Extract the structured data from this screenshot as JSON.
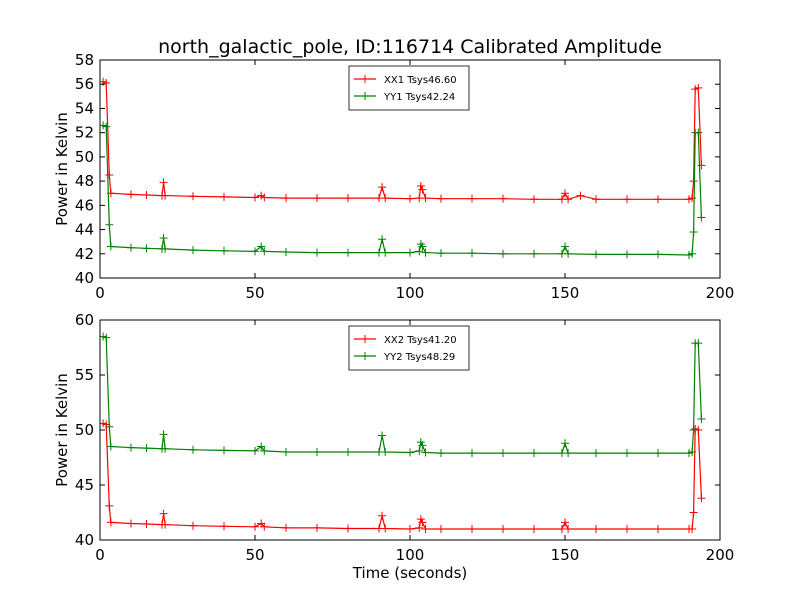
{
  "figure_title": "north_galactic_pole, ID:116714 Calibrated Amplitude",
  "chart_data": [
    {
      "type": "line",
      "title": "north_galactic_pole, ID:116714 Calibrated Amplitude",
      "xlabel": "",
      "ylabel": "Power in Kelvin",
      "xlim": [
        0,
        200
      ],
      "ylim": [
        40,
        58
      ],
      "xticks": [
        0,
        50,
        100,
        150,
        200
      ],
      "yticks": [
        40,
        42,
        44,
        46,
        48,
        50,
        52,
        54,
        56,
        58
      ],
      "grid": false,
      "legend_position": "top-center",
      "series": [
        {
          "name": "XX1 Tsys46.60",
          "color": "#ff0000",
          "marker": "+",
          "points": [
            [
              1,
              56.2
            ],
            [
              2,
              56.1
            ],
            [
              3,
              48.5
            ],
            [
              3.5,
              47.0
            ],
            [
              10,
              46.9
            ],
            [
              15,
              46.85
            ],
            [
              20,
              46.8
            ],
            [
              20.5,
              47.9
            ],
            [
              21,
              46.8
            ],
            [
              30,
              46.75
            ],
            [
              40,
              46.7
            ],
            [
              50,
              46.65
            ],
            [
              52,
              46.8
            ],
            [
              53,
              46.65
            ],
            [
              60,
              46.6
            ],
            [
              70,
              46.6
            ],
            [
              80,
              46.6
            ],
            [
              90,
              46.6
            ],
            [
              91,
              47.5
            ],
            [
              92,
              46.6
            ],
            [
              100,
              46.55
            ],
            [
              103,
              46.6
            ],
            [
              103.5,
              47.6
            ],
            [
              104,
              47.3
            ],
            [
              105,
              46.6
            ],
            [
              110,
              46.55
            ],
            [
              120,
              46.55
            ],
            [
              130,
              46.55
            ],
            [
              140,
              46.5
            ],
            [
              149,
              46.5
            ],
            [
              150,
              47.0
            ],
            [
              151,
              46.5
            ],
            [
              155,
              46.8
            ],
            [
              160,
              46.5
            ],
            [
              170,
              46.5
            ],
            [
              180,
              46.5
            ],
            [
              190,
              46.5
            ],
            [
              191,
              46.6
            ],
            [
              191.5,
              48.0
            ],
            [
              192,
              55.6
            ],
            [
              193,
              55.7
            ],
            [
              194,
              49.3
            ]
          ]
        },
        {
          "name": "YY1 Tsys42.24",
          "color": "#008000",
          "marker": "+",
          "points": [
            [
              1,
              52.6
            ],
            [
              2,
              52.5
            ],
            [
              3,
              44.4
            ],
            [
              3.5,
              42.6
            ],
            [
              10,
              42.5
            ],
            [
              15,
              42.45
            ],
            [
              20,
              42.4
            ],
            [
              20.5,
              43.3
            ],
            [
              21,
              42.4
            ],
            [
              30,
              42.3
            ],
            [
              40,
              42.25
            ],
            [
              50,
              42.2
            ],
            [
              52,
              42.6
            ],
            [
              53,
              42.2
            ],
            [
              60,
              42.15
            ],
            [
              70,
              42.1
            ],
            [
              80,
              42.1
            ],
            [
              90,
              42.1
            ],
            [
              91,
              43.2
            ],
            [
              92,
              42.1
            ],
            [
              100,
              42.1
            ],
            [
              103,
              42.2
            ],
            [
              103.5,
              42.8
            ],
            [
              104,
              42.6
            ],
            [
              105,
              42.1
            ],
            [
              110,
              42.05
            ],
            [
              120,
              42.05
            ],
            [
              130,
              42.0
            ],
            [
              140,
              42.0
            ],
            [
              149,
              42.0
            ],
            [
              150,
              42.6
            ],
            [
              151,
              42.0
            ],
            [
              160,
              41.95
            ],
            [
              170,
              41.95
            ],
            [
              180,
              41.95
            ],
            [
              190,
              41.9
            ],
            [
              191,
              42.0
            ],
            [
              191.5,
              43.8
            ],
            [
              192,
              52.0
            ],
            [
              193,
              52.0
            ],
            [
              194,
              45.0
            ]
          ]
        }
      ]
    },
    {
      "type": "line",
      "title": "",
      "xlabel": "Time (seconds)",
      "ylabel": "Power in Kelvin",
      "xlim": [
        0,
        200
      ],
      "ylim": [
        40,
        60
      ],
      "xticks": [
        0,
        50,
        100,
        150,
        200
      ],
      "yticks": [
        40,
        45,
        50,
        55,
        60
      ],
      "grid": false,
      "legend_position": "top-center",
      "series": [
        {
          "name": "XX2 Tsys41.20",
          "color": "#ff0000",
          "marker": "+",
          "points": [
            [
              1,
              50.6
            ],
            [
              2,
              50.5
            ],
            [
              3,
              43.1
            ],
            [
              3.5,
              41.6
            ],
            [
              10,
              41.5
            ],
            [
              15,
              41.45
            ],
            [
              20,
              41.4
            ],
            [
              20.5,
              42.4
            ],
            [
              21,
              41.4
            ],
            [
              30,
              41.3
            ],
            [
              40,
              41.25
            ],
            [
              50,
              41.2
            ],
            [
              52,
              41.5
            ],
            [
              53,
              41.2
            ],
            [
              60,
              41.1
            ],
            [
              70,
              41.1
            ],
            [
              80,
              41.05
            ],
            [
              90,
              41.05
            ],
            [
              91,
              42.2
            ],
            [
              92,
              41.05
            ],
            [
              100,
              41.0
            ],
            [
              103,
              41.1
            ],
            [
              103.5,
              41.9
            ],
            [
              104,
              41.6
            ],
            [
              105,
              41.0
            ],
            [
              110,
              41.0
            ],
            [
              120,
              41.0
            ],
            [
              130,
              41.0
            ],
            [
              140,
              41.0
            ],
            [
              149,
              41.0
            ],
            [
              150,
              41.6
            ],
            [
              151,
              41.0
            ],
            [
              160,
              41.0
            ],
            [
              170,
              41.0
            ],
            [
              180,
              41.0
            ],
            [
              190,
              41.0
            ],
            [
              191,
              41.0
            ],
            [
              191.5,
              42.5
            ],
            [
              192,
              50.1
            ],
            [
              193,
              50.0
            ],
            [
              194,
              43.8
            ]
          ]
        },
        {
          "name": "YY2 Tsys48.29",
          "color": "#008000",
          "marker": "+",
          "points": [
            [
              1,
              58.5
            ],
            [
              2,
              58.4
            ],
            [
              3,
              50.3
            ],
            [
              3.5,
              48.5
            ],
            [
              10,
              48.4
            ],
            [
              15,
              48.35
            ],
            [
              20,
              48.3
            ],
            [
              20.5,
              49.6
            ],
            [
              21,
              48.3
            ],
            [
              30,
              48.2
            ],
            [
              40,
              48.15
            ],
            [
              50,
              48.1
            ],
            [
              52,
              48.5
            ],
            [
              53,
              48.1
            ],
            [
              60,
              48.0
            ],
            [
              70,
              48.0
            ],
            [
              80,
              48.0
            ],
            [
              90,
              48.0
            ],
            [
              91,
              49.5
            ],
            [
              92,
              48.0
            ],
            [
              100,
              47.95
            ],
            [
              103,
              48.1
            ],
            [
              103.5,
              48.9
            ],
            [
              104,
              48.6
            ],
            [
              105,
              47.95
            ],
            [
              110,
              47.9
            ],
            [
              120,
              47.9
            ],
            [
              130,
              47.9
            ],
            [
              140,
              47.9
            ],
            [
              149,
              47.9
            ],
            [
              150,
              48.8
            ],
            [
              151,
              47.9
            ],
            [
              160,
              47.9
            ],
            [
              170,
              47.9
            ],
            [
              180,
              47.9
            ],
            [
              190,
              47.9
            ],
            [
              191,
              48.0
            ],
            [
              191.5,
              50.0
            ],
            [
              192,
              57.9
            ],
            [
              193,
              57.9
            ],
            [
              194,
              51.0
            ]
          ]
        }
      ]
    }
  ]
}
